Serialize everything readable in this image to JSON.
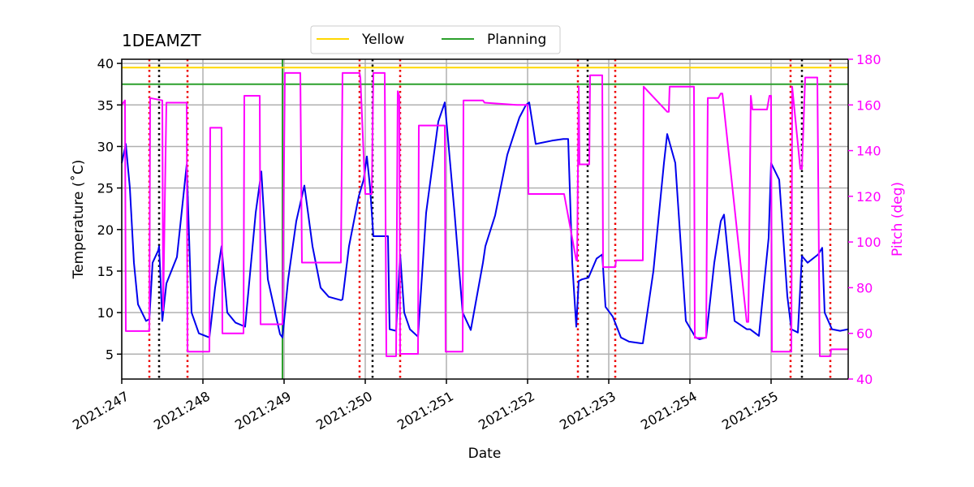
{
  "chart_data": {
    "type": "line",
    "title": "1DEAMZT",
    "xlabel": "Date",
    "ylabel": "Temperature ($^\\circ$C)",
    "ylabel_display": "Temperature (˚C)",
    "y2label": "Pitch (deg)",
    "xlim": [
      247.0,
      255.95
    ],
    "ylim": [
      2.0,
      40.5
    ],
    "y2lim": [
      40,
      180
    ],
    "x_ticks": [
      247,
      248,
      249,
      250,
      251,
      252,
      253,
      254,
      255
    ],
    "x_tick_labels": [
      "2021:247",
      "2021:248",
      "2021:249",
      "2021:250",
      "2021:251",
      "2021:252",
      "2021:253",
      "2021:254",
      "2021:255"
    ],
    "y_ticks": [
      5,
      10,
      15,
      20,
      25,
      30,
      35,
      40
    ],
    "y2_ticks": [
      40,
      60,
      80,
      100,
      120,
      140,
      160,
      180
    ],
    "grid": true,
    "legend_placement": "top-center",
    "colors": {
      "temperature": "#0000ee",
      "pitch": "#ff00ff",
      "yellow_limit": "#ffd700",
      "planning_limit": "#2ca02c",
      "red_marker": "#ee0000",
      "black_marker": "#000000",
      "planning_vline": "#2ca02c"
    },
    "limits": [
      {
        "name": "Yellow",
        "value": 39.5
      },
      {
        "name": "Planning",
        "value": 37.5
      }
    ],
    "vertical_lines": {
      "planning": [
        248.98
      ],
      "red_dotted": [
        247.34,
        247.81,
        249.93,
        250.43,
        252.62,
        253.08,
        255.24,
        255.73
      ],
      "black_dotted": [
        247.46,
        250.09,
        252.74,
        255.38
      ]
    },
    "series": [
      {
        "name": "Temperature",
        "axis": "left",
        "x": [
          247.0,
          247.05,
          247.1,
          247.15,
          247.2,
          247.3,
          247.34,
          247.38,
          247.45,
          247.46,
          247.5,
          247.55,
          247.68,
          247.8,
          247.81,
          247.86,
          247.95,
          248.08,
          248.15,
          248.23,
          248.3,
          248.4,
          248.52,
          248.65,
          248.72,
          248.8,
          248.95,
          248.98,
          249.05,
          249.15,
          249.25,
          249.35,
          249.45,
          249.55,
          249.7,
          249.72,
          249.8,
          249.92,
          249.98,
          250.02,
          250.06,
          250.1,
          250.28,
          250.3,
          250.38,
          250.43,
          250.48,
          250.55,
          250.65,
          250.75,
          250.9,
          250.98,
          251.1,
          251.2,
          251.3,
          251.45,
          251.48,
          251.6,
          251.75,
          251.9,
          251.98,
          252.02,
          252.1,
          252.3,
          252.44,
          252.5,
          252.55,
          252.6,
          252.63,
          252.67,
          252.75,
          252.85,
          252.92,
          252.96,
          253.05,
          253.15,
          253.25,
          253.4,
          253.42,
          253.55,
          253.68,
          253.72,
          253.82,
          253.95,
          254.07,
          254.12,
          254.2,
          254.3,
          254.38,
          254.42,
          254.55,
          254.7,
          254.74,
          254.85,
          254.97,
          255.0,
          255.1,
          255.2,
          255.25,
          255.33,
          255.38,
          255.45,
          255.58,
          255.63,
          255.66,
          255.75,
          255.85,
          255.95
        ],
        "y": [
          28.0,
          30.3,
          25.0,
          16.0,
          11.0,
          9.0,
          9.2,
          16.0,
          17.5,
          18.0,
          9.0,
          13.5,
          16.7,
          27.8,
          25.0,
          10.0,
          7.5,
          7.0,
          13.0,
          18.0,
          10.0,
          8.8,
          8.3,
          22.0,
          27.0,
          14.0,
          7.4,
          7.0,
          14.0,
          21.0,
          25.3,
          18.0,
          13.0,
          11.9,
          11.5,
          11.6,
          18.0,
          24.0,
          26.0,
          28.8,
          25.0,
          19.2,
          19.2,
          8.0,
          7.8,
          17.0,
          10.0,
          8.0,
          7.1,
          22.0,
          33.0,
          35.3,
          22.0,
          10.0,
          7.9,
          16.0,
          18.0,
          21.7,
          29.0,
          33.5,
          35.0,
          35.3,
          30.3,
          30.7,
          30.9,
          30.9,
          16.0,
          8.3,
          13.8,
          14.0,
          14.2,
          16.5,
          17.0,
          10.7,
          9.5,
          7.0,
          6.5,
          6.3,
          6.3,
          15.0,
          28.0,
          31.5,
          28.0,
          9.0,
          7.0,
          6.8,
          7.0,
          16.0,
          21.0,
          21.8,
          9.0,
          8.0,
          8.0,
          7.2,
          19.0,
          28.0,
          26.0,
          12.0,
          8.0,
          7.6,
          16.8,
          16.0,
          17.0,
          17.8,
          10.0,
          8.0,
          7.8,
          8.0
        ]
      },
      {
        "name": "Pitch",
        "axis": "right",
        "x": [
          247.0,
          247.04,
          247.05,
          247.34,
          247.35,
          247.5,
          247.51,
          247.55,
          247.8,
          247.81,
          248.08,
          248.09,
          248.23,
          248.24,
          248.5,
          248.51,
          248.7,
          248.71,
          248.98,
          249.01,
          249.05,
          249.2,
          249.22,
          249.7,
          249.72,
          249.93,
          249.94,
          250.0,
          250.08,
          250.1,
          250.13,
          250.24,
          250.26,
          250.38,
          250.4,
          250.42,
          250.43,
          250.65,
          250.66,
          250.98,
          250.99,
          251.2,
          251.21,
          251.45,
          251.47,
          251.87,
          252.0,
          252.01,
          252.44,
          252.45,
          252.6,
          252.61,
          252.63,
          252.64,
          252.76,
          252.77,
          252.92,
          252.93,
          253.08,
          253.09,
          253.42,
          253.43,
          253.72,
          253.74,
          253.75,
          254.05,
          254.06,
          254.2,
          254.22,
          254.35,
          254.38,
          254.4,
          254.7,
          254.72,
          254.75,
          254.77,
          254.95,
          254.98,
          255.0,
          255.01,
          255.25,
          255.26,
          255.36,
          255.38,
          255.42,
          255.43,
          255.57,
          255.6,
          255.73,
          255.74,
          255.95
        ],
        "y": [
          160,
          162,
          61,
          61,
          163,
          162,
          70,
          161,
          161,
          52,
          52,
          150,
          150,
          60,
          60,
          164,
          164,
          64,
          64,
          174,
          174,
          174,
          91,
          91,
          174,
          174,
          172,
          121,
          121,
          174,
          174,
          174,
          50,
          50,
          166,
          164,
          51,
          51,
          151,
          151,
          52,
          52,
          162,
          162,
          161,
          160,
          160,
          121,
          121,
          121,
          92,
          92,
          168,
          134,
          134,
          173,
          173,
          89,
          89,
          92,
          92,
          168,
          157,
          157,
          168,
          168,
          58,
          58,
          163,
          163,
          165,
          165,
          65,
          65,
          164,
          158,
          158,
          164,
          164,
          52,
          52,
          168,
          132,
          132,
          172,
          172,
          172,
          50,
          50,
          53,
          53
        ]
      }
    ]
  }
}
